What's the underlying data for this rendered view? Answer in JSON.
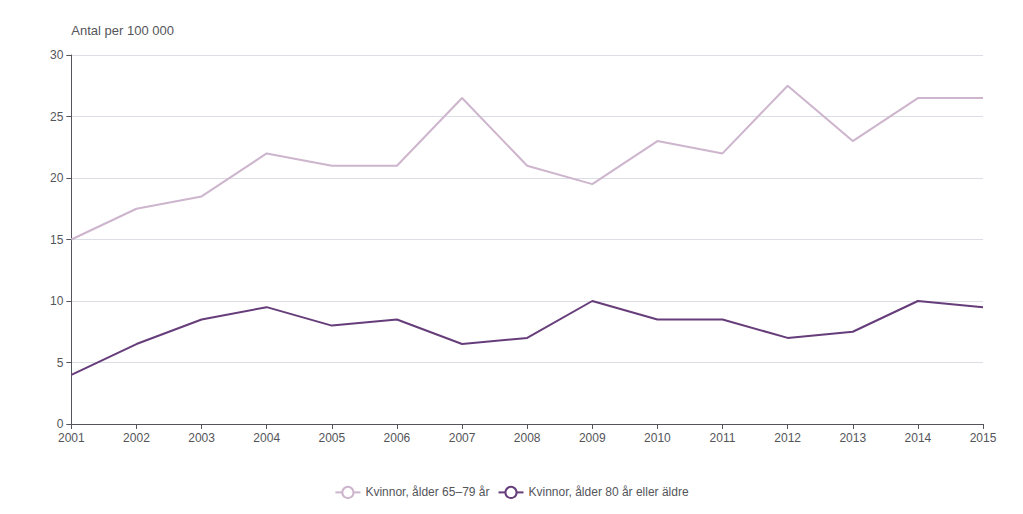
{
  "chart_data": {
    "type": "line",
    "ylabel": "Antal per 100 000",
    "x": [
      2001,
      2002,
      2003,
      2004,
      2005,
      2006,
      2007,
      2008,
      2009,
      2010,
      2011,
      2012,
      2013,
      2014,
      2015
    ],
    "series": [
      {
        "name": "Kvinnor, ålder 65–79 år",
        "color": "#cdb5cd",
        "values": [
          15,
          17.5,
          18.5,
          22,
          21,
          21,
          26.5,
          21,
          19.5,
          23,
          22,
          27.5,
          23,
          26.5,
          26.5
        ]
      },
      {
        "name": "Kvinnor, ålder 80 år eller äldre",
        "color": "#663d7a",
        "values": [
          4,
          6.5,
          8.5,
          9.5,
          8,
          8.5,
          6.5,
          7,
          10,
          8.5,
          8.5,
          7,
          7.5,
          10,
          9.5
        ]
      }
    ],
    "xlim": [
      2001,
      2015
    ],
    "xticks": [
      2001,
      2002,
      2003,
      2004,
      2005,
      2006,
      2007,
      2008,
      2009,
      2010,
      2011,
      2012,
      2013,
      2014,
      2015
    ],
    "ylim": [
      0,
      30
    ],
    "yticks": [
      0,
      5,
      10,
      15,
      20,
      25,
      30
    ],
    "grid": true,
    "legend": "bottom"
  }
}
